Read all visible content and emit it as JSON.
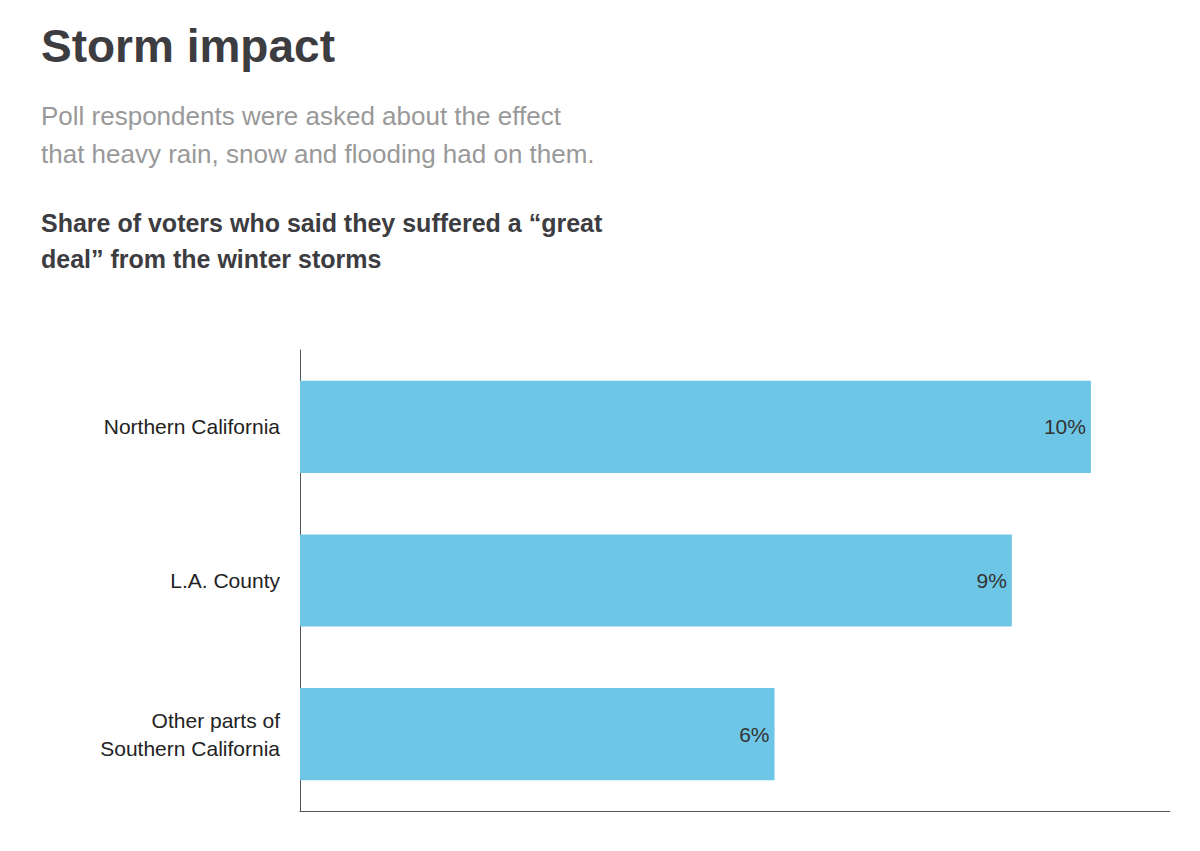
{
  "chart_data": {
    "type": "bar",
    "orientation": "horizontal",
    "title": "Storm impact",
    "subtitle": "Poll respondents were asked about the effect\nthat heavy rain, snow and flooding had on them.",
    "annotations": [
      "Share of voters who said they suffered a “great\ndeal” from the winter storms"
    ],
    "categories": [
      "Northern California",
      "L.A. County",
      "Other parts of\nSouthern California"
    ],
    "values": [
      10,
      9,
      6
    ],
    "value_labels": [
      "10%",
      "9%",
      "6%"
    ],
    "data_labels": true,
    "color": "#6ec6e6",
    "xlim": [
      0,
      11
    ],
    "xticks": [],
    "tick_labels": "y",
    "grid": false
  }
}
